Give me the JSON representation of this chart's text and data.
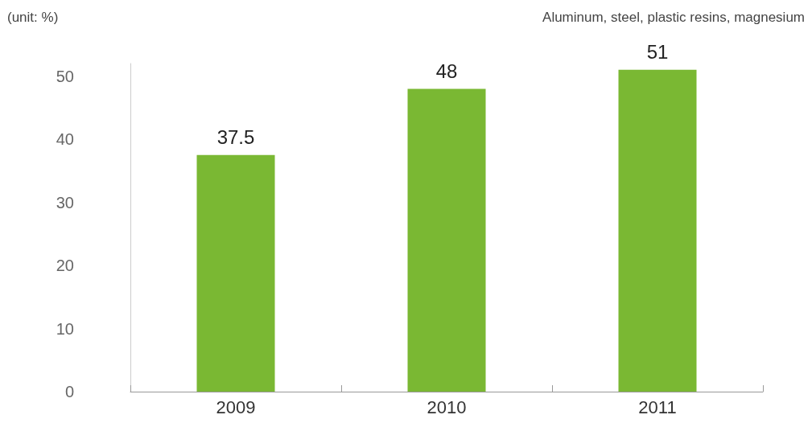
{
  "chart_data": {
    "type": "bar",
    "annotations": [
      "(unit: %)",
      "Aluminum, steel, plastic resins, magnesium"
    ],
    "categories": [
      "2009",
      "2010",
      "2011"
    ],
    "values": [
      37.5,
      48,
      51
    ],
    "color": "#7ab833",
    "ylim": [
      0,
      52
    ],
    "yticks": [
      0,
      10,
      20,
      30,
      40,
      50
    ],
    "grid": false,
    "data_labels": true
  }
}
